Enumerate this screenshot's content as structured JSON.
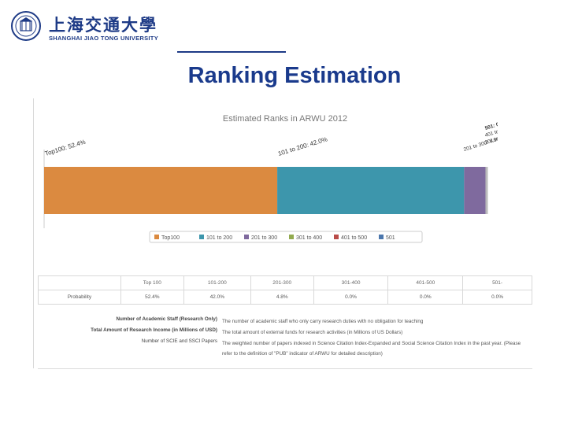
{
  "header": {
    "logo_cn": "上海交通大學",
    "logo_en": "SHANGHAI JIAO TONG UNIVERSITY"
  },
  "slide": {
    "title": "Ranking Estimation"
  },
  "chart_data": {
    "type": "bar",
    "orientation": "horizontal-stacked",
    "title": "Estimated Ranks in ARWU 2012",
    "series": [
      {
        "name": "Top100",
        "values": [
          52.4
        ],
        "color": "#db8a40",
        "label": "Top100: 52.4%"
      },
      {
        "name": "101 to 200",
        "values": [
          42.0
        ],
        "color": "#3d96ac",
        "label": "101 to 200: 42.0%"
      },
      {
        "name": "201 to 300",
        "values": [
          4.8
        ],
        "color": "#7f6a9e",
        "label": "201 to 300: 4.8%"
      },
      {
        "name": "301 to 400",
        "values": [
          0.0
        ],
        "color": "#92aa4f",
        "label": "301 to 400: 0.0%"
      },
      {
        "name": "401 to 500",
        "values": [
          0.0
        ],
        "color": "#b94c49",
        "label": "401 to 500: 0.0%"
      },
      {
        "name": "501",
        "values": [
          0.0
        ],
        "color": "#4c77ad",
        "label": "501: 0.0%"
      }
    ],
    "xlim": [
      0,
      100
    ],
    "grid": false,
    "legend_position": "bottom"
  },
  "table": {
    "headers": [
      "",
      "Top 100",
      "101-200",
      "201-300",
      "301-400",
      "401-500",
      "501-"
    ],
    "rows": [
      [
        "Probability",
        "52.4%",
        "42.0%",
        "4.8%",
        "0.0%",
        "0.0%",
        "0.0%"
      ]
    ]
  },
  "definitions": [
    {
      "term": "Number of Academic Staff (Research Only)",
      "desc": "The number of academic staff who only carry research duties with no obligation for teaching"
    },
    {
      "term": "Total Amount of Research Income (in Millions of USD)",
      "desc": "The total amount of external funds for research activities (in Millions of US Dollars)"
    },
    {
      "term": "Number of SCIE and SSCI Papers",
      "desc": "The weighted number of papers indexed in Science Citation Index-Expanded and Social Science Citation Index in the past year. (Please refer to the definition of \"PUB\" indicator of ARWU for detailed description)"
    }
  ]
}
